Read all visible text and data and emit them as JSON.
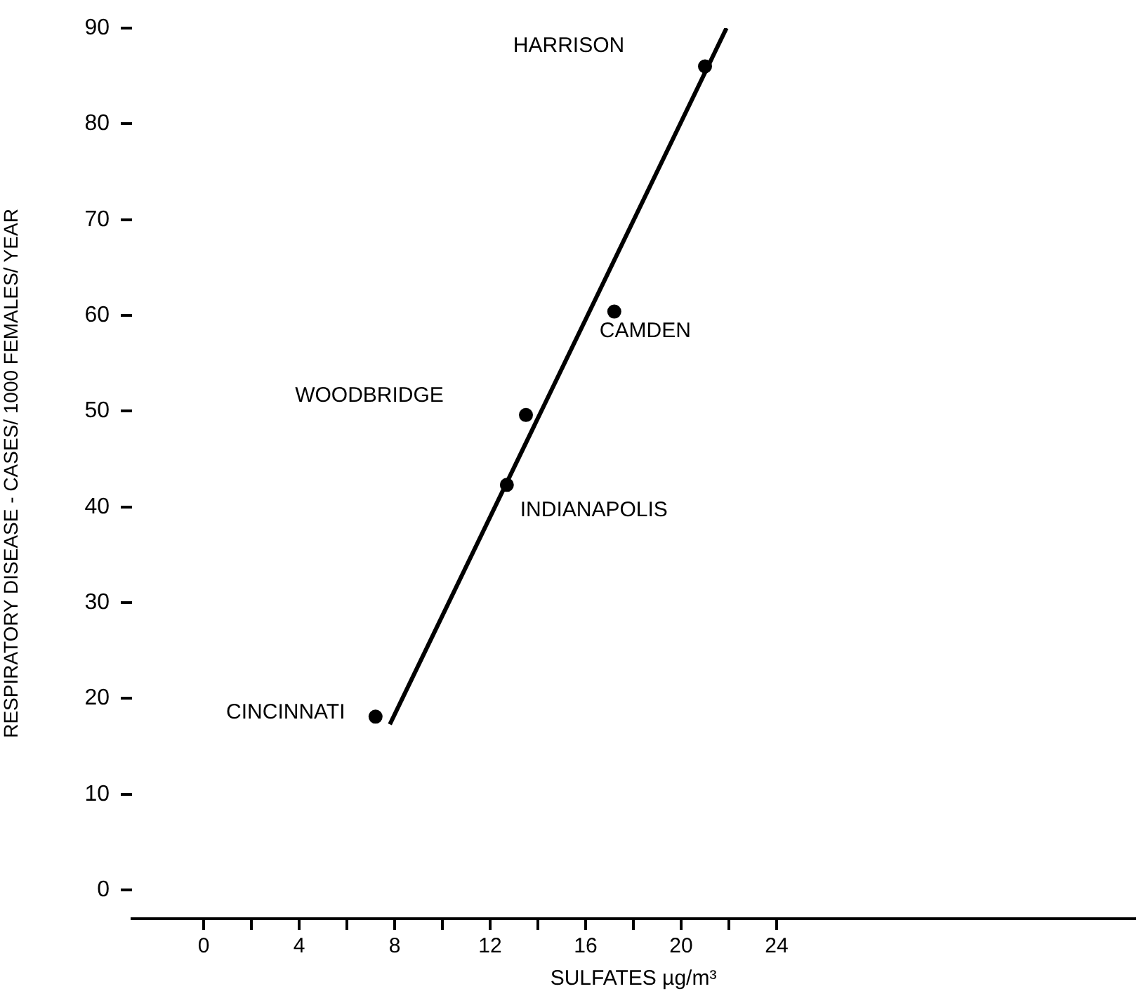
{
  "chart_data": {
    "type": "scatter",
    "xlabel": "SULFATES µg/m³",
    "ylabel": "RESPIRATORY DISEASE - CASES/ 1000 FEMALES/ YEAR",
    "series": [
      {
        "x": [
          7.2,
          12.7,
          13.5,
          17.2,
          21.0
        ],
        "values": [
          18.1,
          42.3,
          49.6,
          60.4,
          86.0
        ],
        "color": "#000000"
      },
      {
        "type": "line",
        "x": [
          7.8,
          21.9
        ],
        "values": [
          17.3,
          90
        ],
        "color": "#000000",
        "marker": "none"
      }
    ],
    "xlim": [
      -3,
      39
    ],
    "xticks": [
      0,
      {
        "value": 2,
        "label": null
      },
      4,
      {
        "value": 6,
        "label": null
      },
      8,
      {
        "value": 10,
        "label": null
      },
      12,
      {
        "value": 14,
        "label": null
      },
      16,
      {
        "value": 18,
        "label": null
      },
      20,
      {
        "value": 22,
        "label": null
      },
      24
    ],
    "ylim": [
      -3,
      90
    ],
    "yticks": [
      0,
      10,
      20,
      30,
      40,
      50,
      60,
      70,
      80,
      90
    ],
    "annotations": [
      {
        "text": "CINCINNATI",
        "x": 7.2,
        "y": 18.1
      },
      "WOODBRIDGE",
      {
        "text": "INDIANAPOLIS",
        "x": 12.7,
        "y": 42.3
      },
      {
        "text": "CAMDEN",
        "x": 17.2,
        "y": 60.4
      },
      "HARRISON"
    ],
    "marker": "circle",
    "line_style": "solid",
    "grid": false,
    "legend": false
  }
}
